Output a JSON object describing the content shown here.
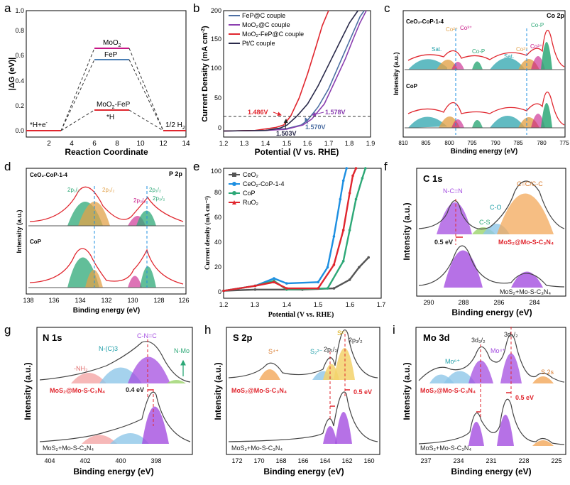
{
  "chart_data": [
    {
      "type": "line",
      "panel": "a",
      "title": "",
      "xlabel": "Reaction Coordinate",
      "ylabel": "|ΔG (eV)|",
      "xlim": [
        0,
        14
      ],
      "ylim": [
        0,
        1.0
      ],
      "xticks": [
        "2",
        "4",
        "6",
        "8",
        "10",
        "12",
        "14"
      ],
      "yticks": [
        "0.0",
        "0.2",
        "0.4",
        "0.6",
        "0.8",
        "1.0"
      ],
      "states": [
        {
          "label": "*H+e⁻",
          "x_start": 0,
          "x_end": 3,
          "value": 0.0
        },
        {
          "label": "1/2 H₂",
          "x_start": 12,
          "x_end": 14,
          "value": 0.0
        }
      ],
      "series": [
        {
          "name": "MoO₂",
          "color": "#c71585",
          "x_start": 6,
          "x_end": 9,
          "value": 0.86
        },
        {
          "name": "FeP",
          "color": "#4a7fb5",
          "x_start": 6,
          "x_end": 9,
          "value": 0.73
        },
        {
          "name": "MoO₂-FeP",
          "color": "#e0262e",
          "x_start": 6,
          "x_end": 9,
          "value": 0.21
        }
      ],
      "annotations": [
        "MoO₂",
        "FeP",
        "MoO₂-FeP",
        "*H"
      ]
    },
    {
      "type": "line",
      "panel": "b",
      "xlabel": "Potential (V vs. RHE)",
      "ylabel": "Current Density (mA cm⁻²)",
      "xlim": [
        1.2,
        1.9
      ],
      "ylim": [
        -10,
        200
      ],
      "xticks": [
        "1.2",
        "1.3",
        "1.4",
        "1.5",
        "1.6",
        "1.7",
        "1.8",
        "1.9"
      ],
      "yticks": [
        "0",
        "50",
        "100",
        "150",
        "200"
      ],
      "series": [
        {
          "name": "FeP@C couple",
          "color": "#4d6fa3",
          "x": [
            1.2,
            1.4,
            1.5,
            1.57,
            1.6,
            1.65,
            1.7,
            1.75,
            1.8,
            1.85,
            1.87
          ],
          "y": [
            0,
            1,
            4,
            10,
            18,
            40,
            70,
            110,
            150,
            190,
            200
          ]
        },
        {
          "name": "MoO₂@C couple",
          "color": "#8b3fb0",
          "x": [
            1.2,
            1.4,
            1.5,
            1.578,
            1.62,
            1.68,
            1.72,
            1.78,
            1.82,
            1.85,
            1.88
          ],
          "y": [
            0,
            1,
            3,
            10,
            20,
            45,
            75,
            120,
            155,
            180,
            200
          ]
        },
        {
          "name": "MoO₂-FeP@C couple",
          "color": "#e0262e",
          "x": [
            1.2,
            1.35,
            1.45,
            1.486,
            1.52,
            1.56,
            1.6,
            1.64,
            1.67,
            1.7
          ],
          "y": [
            0,
            1,
            6,
            10,
            25,
            55,
            95,
            140,
            175,
            200
          ]
        },
        {
          "name": "Pt/C couple",
          "color": "#2a2a4a",
          "x": [
            1.2,
            1.4,
            1.47,
            1.503,
            1.55,
            1.6,
            1.65,
            1.7,
            1.75,
            1.8,
            1.84
          ],
          "y": [
            0,
            1,
            5,
            10,
            25,
            45,
            75,
            110,
            145,
            180,
            200
          ]
        }
      ],
      "annotations": [
        "1.486V",
        "1.578V",
        "1.570V",
        "1.503V"
      ]
    },
    {
      "type": "line",
      "panel": "c",
      "title": "Co 2p",
      "xlabel": "Binding energy (eV)",
      "ylabel": "Intensity (a.u.)",
      "xlim": [
        810,
        775
      ],
      "xticks": [
        "810",
        "805",
        "800",
        "795",
        "790",
        "785",
        "780",
        "775"
      ],
      "samples": [
        "CeO₂-CoP-1-4",
        "CoP"
      ],
      "peak_labels": [
        "Sat.",
        "Co³⁺",
        "Co²⁺",
        "Co-P",
        "Sat.",
        "Co²⁺",
        "Co³⁺",
        "Co-P"
      ]
    },
    {
      "type": "line",
      "panel": "d",
      "title": "P 2p",
      "xlabel": "Binding energy (eV)",
      "ylabel": "Intensity (a.u.)",
      "xlim": [
        138,
        126
      ],
      "xticks": [
        "138",
        "136",
        "134",
        "132",
        "130",
        "128",
        "126"
      ],
      "samples": [
        "CeO₂-CoP-1-4",
        "CoP"
      ],
      "peak_labels": [
        "2p₁/₂",
        "2p₃/₂",
        "2p₃/₂",
        "2p₁/₂",
        "2p₃/₂"
      ]
    },
    {
      "type": "line",
      "panel": "e",
      "xlabel": "Potential (V vs. RHE)",
      "ylabel": "Current density (mA cm⁻²)",
      "xlim": [
        1.2,
        1.7
      ],
      "ylim": [
        -5,
        100
      ],
      "xticks": [
        "1.2",
        "1.3",
        "1.4",
        "1.5",
        "1.6",
        "1.7"
      ],
      "yticks": [
        "0",
        "20",
        "40",
        "60",
        "80",
        "100"
      ],
      "series": [
        {
          "name": "CeO₂",
          "color": "#555555",
          "x": [
            1.2,
            1.3,
            1.45,
            1.55,
            1.6,
            1.63,
            1.66
          ],
          "y": [
            1,
            2,
            2,
            3,
            10,
            20,
            28
          ]
        },
        {
          "name": "CeO₂-CoP-1-4",
          "color": "#1d8fe1",
          "x": [
            1.2,
            1.3,
            1.36,
            1.4,
            1.5,
            1.53,
            1.55,
            1.57,
            1.58,
            1.59
          ],
          "y": [
            1,
            5,
            11,
            7,
            8,
            20,
            45,
            75,
            90,
            100
          ]
        },
        {
          "name": "CoP",
          "color": "#2da877",
          "x": [
            1.2,
            1.3,
            1.36,
            1.4,
            1.53,
            1.58,
            1.6,
            1.62,
            1.64,
            1.65
          ],
          "y": [
            1,
            5,
            9,
            2,
            3,
            25,
            50,
            75,
            92,
            100
          ]
        },
        {
          "name": "RuO₂",
          "color": "#e0262e",
          "x": [
            1.2,
            1.3,
            1.36,
            1.4,
            1.5,
            1.55,
            1.58,
            1.6,
            1.61,
            1.62
          ],
          "y": [
            1,
            5,
            8,
            3,
            3,
            22,
            50,
            80,
            94,
            100
          ]
        }
      ]
    },
    {
      "type": "line",
      "panel": "f",
      "title": "C 1s",
      "xlabel": "Binding energy (eV)",
      "ylabel": "Intensity (a.u.)",
      "xlim": [
        291,
        283
      ],
      "xticks": [
        "290",
        "288",
        "286",
        "284"
      ],
      "samples": [
        "MoS₂@Mo-S-C₃N₄",
        "MoS₂+Mo-S-C₃N₄"
      ],
      "peak_labels": [
        "N-C=N",
        "C-O",
        "C-S",
        "C=C/C-C"
      ],
      "shift": "0.5 eV"
    },
    {
      "type": "line",
      "panel": "g",
      "title": "N 1s",
      "xlabel": "Binding energy (eV)",
      "ylabel": "Intensity (a.u.)",
      "xlim": [
        405,
        396
      ],
      "xticks": [
        "404",
        "402",
        "400",
        "398"
      ],
      "samples": [
        "MoS₂@Mo-S-C₃N₄",
        "MoS₂+Mo-S-C₃N₄"
      ],
      "peak_labels": [
        "-NH₂",
        "N-(C)3",
        "C-N=C",
        "N-Mo"
      ],
      "shift": "0.4 eV"
    },
    {
      "type": "line",
      "panel": "h",
      "title": "S 2p",
      "xlabel": "Binding energy (eV)",
      "ylabel": "Intensity (a.u.)",
      "xlim": [
        173,
        159
      ],
      "xticks": [
        "172",
        "170",
        "168",
        "166",
        "164",
        "162",
        "160"
      ],
      "samples": [
        "MoS₂@Mo-S-C₃N₄",
        "MoS₂+Mo-S-C₃N₄"
      ],
      "peak_labels": [
        "S⁴⁺",
        "S₂²⁻",
        "S²⁻",
        "2p₁/₂",
        "2p₃/₂"
      ],
      "shift": "0.5 eV"
    },
    {
      "type": "line",
      "panel": "i",
      "title": "Mo 3d",
      "xlabel": "Binding energy (eV)",
      "ylabel": "Intensity (a.u.)",
      "xlim": [
        238,
        224
      ],
      "xticks": [
        "237",
        "234",
        "231",
        "228",
        "225"
      ],
      "samples": [
        "MoS₂@Mo-S-C₃N₄",
        "MoS₂+Mo-S-C₃N₄"
      ],
      "peak_labels": [
        "Mo⁶⁺",
        "3d₃/₂",
        "Mo⁴⁺",
        "3d₅/₂",
        "S 2s"
      ],
      "shift": "0.5 eV"
    }
  ],
  "panels": {
    "a": {
      "letter": "a",
      "ylabel": "|ΔG (eV)|",
      "xlabel": "Reaction Coordinate",
      "lab_moo2": "MoO",
      "lab_moo2_sub": "2",
      "lab_fep": "FeP",
      "lab_moofep": "MoO",
      "lab_moofep_sub": "2",
      "lab_moofep_tail": "-FeP",
      "lab_h": "*H",
      "lab_start": "*H+e",
      "lab_start_sup": "-",
      "lab_end": "1/2 H",
      "lab_end_sub": "2"
    },
    "b": {
      "letter": "b",
      "ylabel": "Current Density (mA cm",
      "ylabel_sup": "-2",
      "ylabel_tail": ")",
      "xlabel": "Potential (V vs. RHE)",
      "ann1": "1.486V",
      "ann2": "1.578V",
      "ann3": "1.570V",
      "ann4": "1.503V",
      "leg1": "FeP@C couple",
      "leg2": "MoO₂@C couple",
      "leg3": "MoO₂-FeP@C couple",
      "leg4": "Pt/C couple"
    },
    "c": {
      "letter": "c",
      "title": "Co 2p",
      "sample1": "CeO₂-CoP-1-4",
      "sample2": "CoP",
      "ylabel": "Intensity (a.u.)",
      "xlabel": "Binding energy (eV)",
      "p1": "Sat.",
      "p2": "Co³⁺",
      "p3": "Co²⁺",
      "p4": "Co-P",
      "p5": "Sat.",
      "p6": "Co²⁺",
      "p7": "Co³⁺",
      "p8": "Co-P"
    },
    "d": {
      "letter": "d",
      "title": "P 2p",
      "sample1": "CeO₂-CoP-1-4",
      "sample2": "CoP",
      "ylabel": "Intensity (a.u.)",
      "xlabel": "Binding energy (eV)",
      "p1": "2p₁/₂",
      "p2": "2p₃/₂",
      "p3": "2p₃/₂",
      "p4": "2p₁/₂",
      "p5": "2p₃/₂"
    },
    "e": {
      "letter": "e",
      "ylabel": "Current density (mA cm⁻²)",
      "xlabel": "Potential (V vs. RHE)",
      "leg1": "CeO₂",
      "leg2": "CeO₂-CoP-1-4",
      "leg3": "CoP",
      "leg4": "RuO₂"
    },
    "f": {
      "letter": "f",
      "title": "C 1s",
      "ylabel": "Intensity (a.u.)",
      "xlabel": "Binding energy (eV)",
      "p1": "N-C=N",
      "p2": "C-O",
      "p3": "C-S",
      "p4": "C=C/C-C",
      "shift": "0.5 eV",
      "sample1": "MoS₂@Mo-S-C₃N₄",
      "sample2": "MoS₂+Mo-S-C₃N₄"
    },
    "g": {
      "letter": "g",
      "title": "N 1s",
      "ylabel": "Intensity (a.u.)",
      "xlabel": "Binding energy (eV)",
      "p1": "-NH₂",
      "p2": "N-(C)3",
      "p3": "C-N=C",
      "p4": "N-Mo",
      "shift": "0.4 eV",
      "sample1": "MoS₂@Mo-S-C₃N₄",
      "sample2": "MoS₂+Mo-S-C₃N₄"
    },
    "h": {
      "letter": "h",
      "title": "S 2p",
      "ylabel": "Intensity (a.u.)",
      "xlabel": "Binding energy (eV)",
      "p1": "S⁴⁺",
      "p2": "S₂²⁻",
      "p3": "S²⁻",
      "p4": "2p₁/₂",
      "p5": "2p₃/₂",
      "shift": "0.5 eV",
      "sample1": "MoS₂@Mo-S-C₃N₄",
      "sample2": "MoS₂+Mo-S-C₃N₄"
    },
    "i": {
      "letter": "i",
      "title": "Mo 3d",
      "ylabel": "Intensity (a.u.)",
      "xlabel": "Binding energy (eV)",
      "p1": "Mo⁶⁺",
      "p2": "3d₃/₂",
      "p3": "Mo⁴⁺",
      "p4": "3d₅/₂",
      "p5": "S 2s",
      "shift": "0.5 eV",
      "sample1": "MoS₂@Mo-S-C₃N₄",
      "sample2": "MoS₂+Mo-S-C₃N₄"
    }
  },
  "colors": {
    "red": "#e0262e",
    "magenta": "#c71585",
    "blue": "#4a7fb5",
    "purple": "#a44ee0",
    "green": "#2da877",
    "gray": "#555555"
  }
}
